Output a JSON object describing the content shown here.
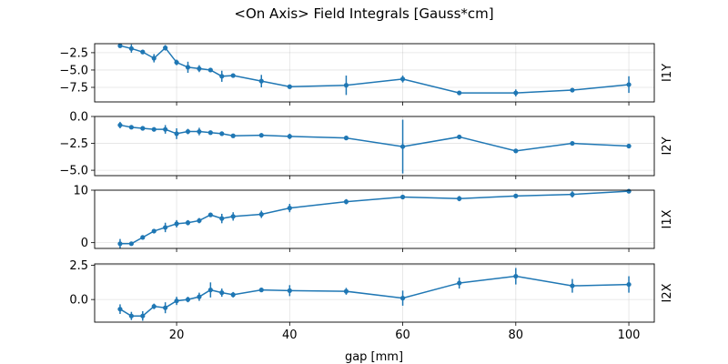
{
  "chart_data": {
    "type": "line",
    "title": "<On Axis> Field Integrals [Gauss*cm]",
    "xlabel": "gap [mm]",
    "x_ticks": [
      "20",
      "40",
      "60",
      "80",
      "100"
    ],
    "xlim": [
      5.5,
      104.5
    ],
    "grid": true,
    "x": [
      10,
      12,
      14,
      16,
      18,
      20,
      22,
      24,
      26,
      28,
      30,
      35,
      40,
      50,
      60,
      70,
      80,
      90,
      100
    ],
    "subplots": [
      {
        "ylabel": "I1Y",
        "ylim": [
          -9.6,
          -1.2
        ],
        "y_ticks": [
          {
            "value": -2.5,
            "label": "−2.5"
          },
          {
            "value": -5.0,
            "label": "−5.0"
          },
          {
            "value": -7.5,
            "label": "−7.5"
          }
        ],
        "values": [
          -1.5,
          -1.9,
          -2.4,
          -3.3,
          -1.8,
          -3.9,
          -4.6,
          -4.8,
          -5.0,
          -5.9,
          -5.8,
          -6.6,
          -7.4,
          -7.2,
          -6.3,
          -8.3,
          -8.3,
          -7.9,
          -7.1
        ],
        "errors": [
          0.3,
          0.6,
          0.3,
          0.6,
          0.4,
          0.4,
          0.8,
          0.5,
          0.3,
          0.8,
          0.3,
          0.9,
          0.2,
          1.4,
          0.5,
          0.2,
          0.5,
          0.3,
          1.2
        ]
      },
      {
        "ylabel": "I2Y",
        "ylim": [
          -5.5,
          0.0
        ],
        "y_ticks": [
          {
            "value": 0.0,
            "label": "0.0"
          },
          {
            "value": -2.5,
            "label": "−2.5"
          },
          {
            "value": -5.0,
            "label": "−5.0"
          }
        ],
        "values": [
          -0.8,
          -1.0,
          -1.1,
          -1.2,
          -1.2,
          -1.6,
          -1.4,
          -1.4,
          -1.5,
          -1.6,
          -1.8,
          -1.75,
          -1.85,
          -2.0,
          -2.8,
          -1.9,
          -3.2,
          -2.5,
          -2.75
        ],
        "errors": [
          0.3,
          0.15,
          0.15,
          0.2,
          0.4,
          0.5,
          0.25,
          0.35,
          0.15,
          0.2,
          0.15,
          0.2,
          0.25,
          0.2,
          2.5,
          0.1,
          0.2,
          0.15,
          0.15
        ]
      },
      {
        "ylabel": "I1X",
        "ylim": [
          -1.1,
          10.0
        ],
        "y_ticks": [
          {
            "value": 10,
            "label": "10"
          },
          {
            "value": 0,
            "label": "0"
          }
        ],
        "values": [
          -0.2,
          -0.2,
          1.0,
          2.2,
          2.9,
          3.6,
          3.8,
          4.2,
          5.3,
          4.6,
          5.0,
          5.4,
          6.6,
          7.8,
          8.7,
          8.4,
          8.9,
          9.2,
          9.8
        ],
        "errors": [
          0.9,
          0.3,
          0.3,
          0.4,
          0.9,
          0.7,
          0.5,
          0.5,
          0.4,
          0.9,
          0.8,
          0.7,
          0.8,
          0.5,
          0.3,
          0.5,
          0.3,
          0.6,
          0.3
        ]
      },
      {
        "ylabel": "I2X",
        "ylim": [
          -1.65,
          2.6
        ],
        "y_ticks": [
          {
            "value": 2.5,
            "label": "2.5"
          },
          {
            "value": 0.0,
            "label": "0.0"
          }
        ],
        "values": [
          -0.7,
          -1.2,
          -1.2,
          -0.5,
          -0.6,
          -0.1,
          0.0,
          0.2,
          0.7,
          0.5,
          0.35,
          0.7,
          0.65,
          0.6,
          0.1,
          1.2,
          1.7,
          1.0,
          1.1
        ],
        "errors": [
          0.35,
          0.3,
          0.35,
          0.2,
          0.4,
          0.3,
          0.2,
          0.3,
          0.55,
          0.3,
          0.2,
          0.15,
          0.4,
          0.25,
          0.55,
          0.4,
          0.6,
          0.5,
          0.6
        ]
      }
    ]
  }
}
